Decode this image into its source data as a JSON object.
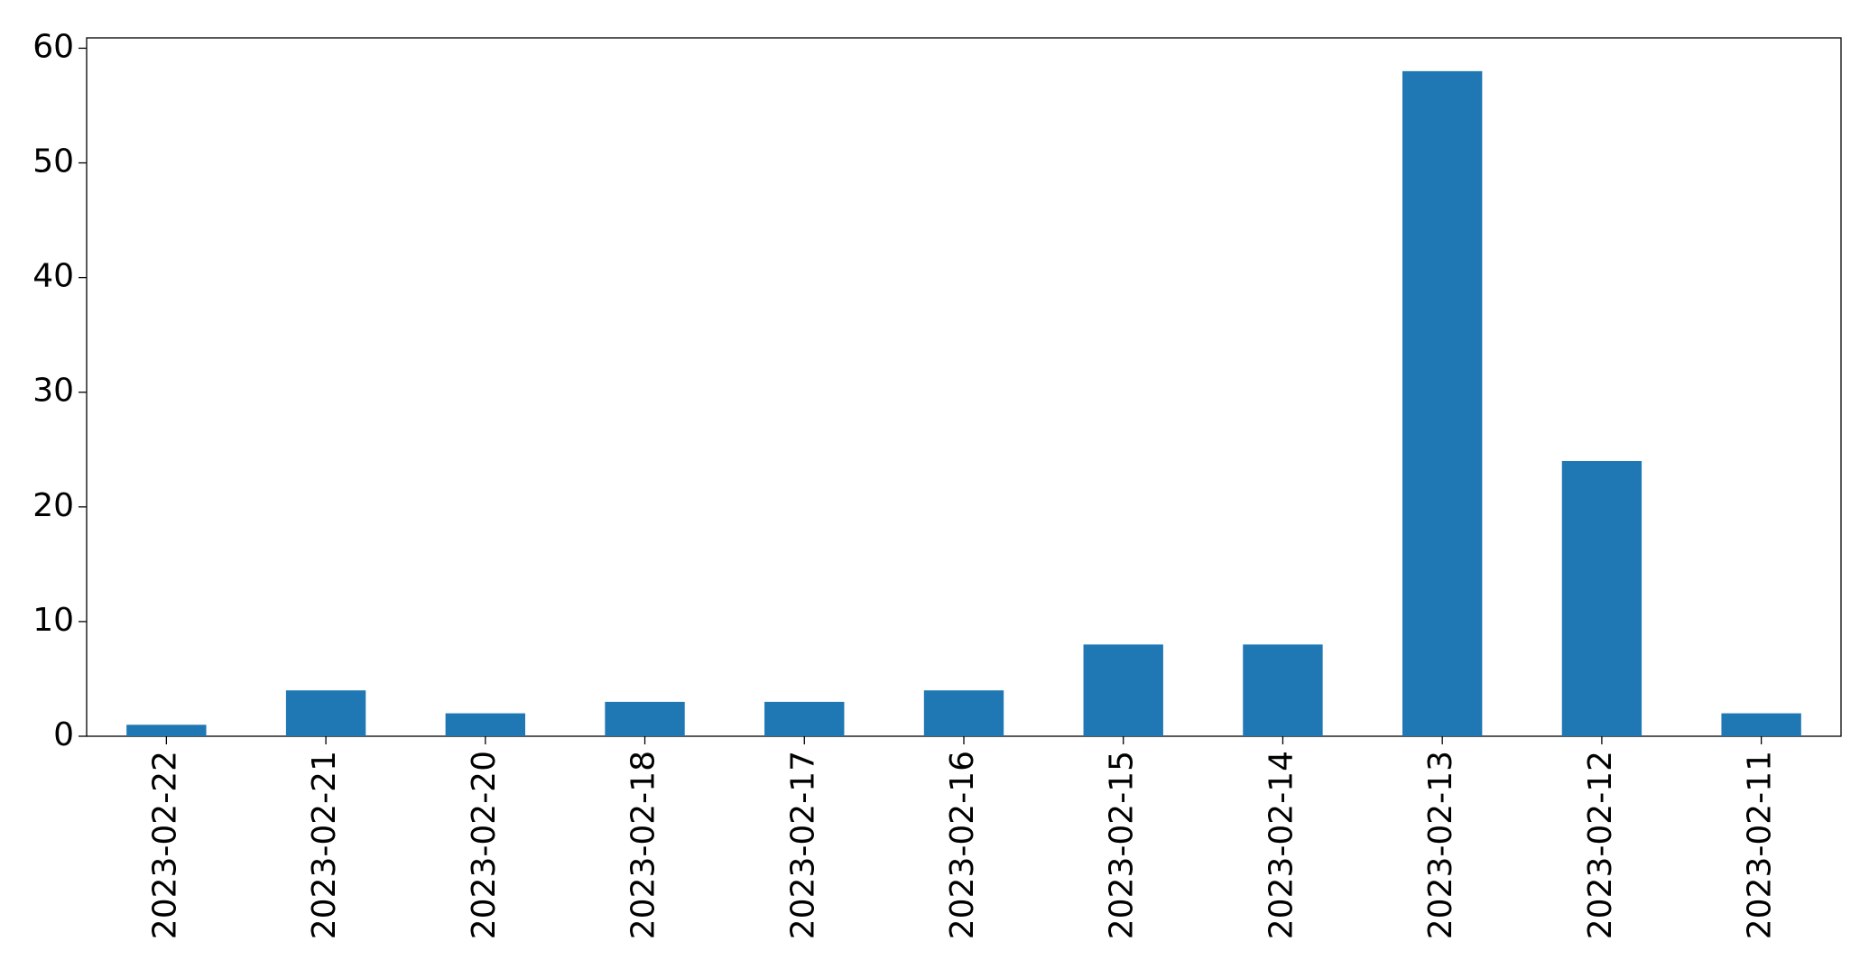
{
  "chart_data": {
    "type": "bar",
    "categories": [
      "2023-02-22",
      "2023-02-21",
      "2023-02-20",
      "2023-02-18",
      "2023-02-17",
      "2023-02-16",
      "2023-02-15",
      "2023-02-14",
      "2023-02-13",
      "2023-02-12",
      "2023-02-11"
    ],
    "values": [
      1,
      4,
      2,
      3,
      3,
      4,
      8,
      8,
      58,
      24,
      2
    ],
    "color": "#1f77b4",
    "ylim": [
      0,
      60.9
    ],
    "yticks": [
      0,
      10,
      20,
      30,
      40,
      50,
      60
    ],
    "grid": false
  }
}
